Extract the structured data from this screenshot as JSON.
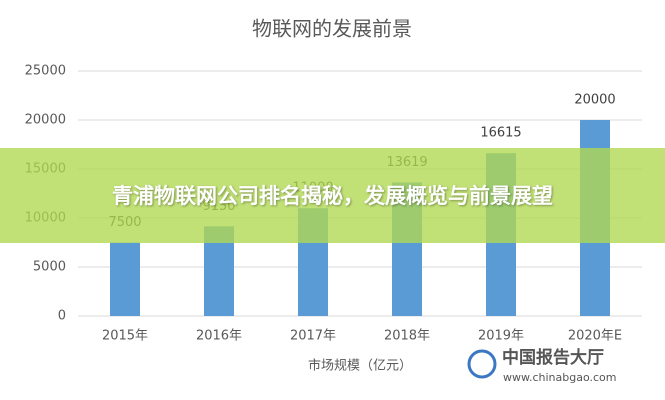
{
  "chart_data": {
    "type": "bar",
    "title": "物联网的发展前景",
    "x_label": "市场规模（亿元）",
    "categories": [
      "2015年",
      "2016年",
      "2017年",
      "2018年",
      "2019年",
      "2020年E"
    ],
    "values": [
      7500,
      9150,
      11000,
      13619,
      16615,
      20000
    ],
    "color": "#5b9bd5",
    "ylim": [
      0,
      25000
    ],
    "yticks": [
      0,
      5000,
      10000,
      15000,
      20000,
      25000
    ],
    "grid": true
  },
  "banner": {
    "text": "青浦物联网公司排名揭秘，发展概览与前景展望"
  },
  "watermark": {
    "name": "中国报告大厅",
    "url": "www.chinabgao.com"
  }
}
